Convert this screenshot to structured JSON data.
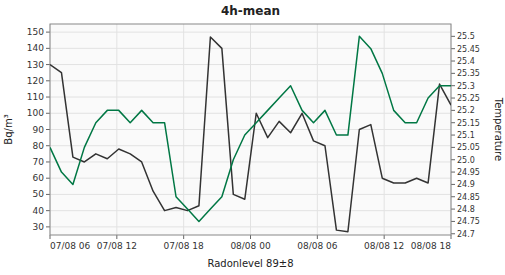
{
  "chart_data": {
    "type": "line",
    "title": "4h-mean",
    "xlabel": "Radonlevel 89±8",
    "ylabel": "Bq/m³",
    "y2label": "Temperature",
    "x": [
      0,
      0.171428571428571,
      0.342857142857143,
      0.514285714285714,
      0.685714285714286,
      0.857142857142857,
      1.028571428571429,
      1.2,
      1.371428571428571,
      1.542857142857143,
      1.714285714285714,
      1.885714285714286,
      2.057142857142857,
      2.228571428571429,
      2.4,
      2.571428571428571,
      2.742857142857143,
      2.914285714285714,
      3.085714285714286,
      3.257142857142857,
      3.428571428571429,
      3.6,
      3.771428571428571,
      3.942857142857143,
      4.114285714285714,
      4.285714285714286,
      4.457142857142857,
      4.628571428571429,
      4.8,
      4.971428571428571,
      5.142857142857143,
      5.314285714285714,
      5.485714285714286,
      5.657142857142857,
      5.828571428571429,
      6
    ],
    "xlim": [
      0,
      6
    ],
    "xticks": [
      {
        "value": 0,
        "label": "07/08 06"
      },
      {
        "value": 1,
        "label": "07/08 12"
      },
      {
        "value": 2,
        "label": "07/08 18"
      },
      {
        "value": 3,
        "label": "08/08 00"
      },
      {
        "value": 4,
        "label": "08/08 06"
      },
      {
        "value": 5,
        "label": "08/08 12"
      },
      {
        "value": 6,
        "label": "08/08 18"
      }
    ],
    "ylim": [
      25,
      155
    ],
    "yticks": [
      30,
      40,
      50,
      60,
      70,
      80,
      90,
      100,
      110,
      120,
      130,
      140,
      150
    ],
    "y2lim": [
      24.695,
      25.55
    ],
    "y2ticks": [
      24.7,
      24.75,
      24.8,
      24.85,
      24.9,
      24.95,
      {
        "value": 25.0,
        "label": "25.0"
      },
      25.05,
      25.1,
      25.15,
      25.2,
      25.25,
      25.3,
      25.35,
      25.4,
      25.45,
      25.5
    ],
    "grid": true,
    "series": [
      {
        "values": [
          130,
          125,
          73,
          70,
          75,
          72,
          78,
          75,
          70,
          52,
          40,
          42,
          40,
          43,
          147,
          140,
          50,
          47,
          100,
          85,
          95,
          88,
          100,
          83,
          80,
          28,
          27,
          90,
          93,
          60,
          57,
          57,
          60,
          57,
          118,
          105
        ],
        "color": "#333333"
      },
      {
        "values": [
          25.05,
          24.95,
          24.9,
          25.05,
          25.15,
          25.2,
          25.2,
          25.15,
          25.2,
          25.15,
          25.15,
          24.85,
          24.8,
          24.75,
          24.8,
          24.85,
          25.0,
          25.1,
          25.15,
          25.2,
          25.25,
          25.3,
          25.2,
          25.15,
          25.2,
          25.1,
          25.1,
          25.5,
          25.45,
          25.35,
          25.2,
          25.15,
          25.15,
          25.25,
          25.3,
          25.3
        ],
        "color": "#007744",
        "axis": "y2"
      }
    ]
  }
}
